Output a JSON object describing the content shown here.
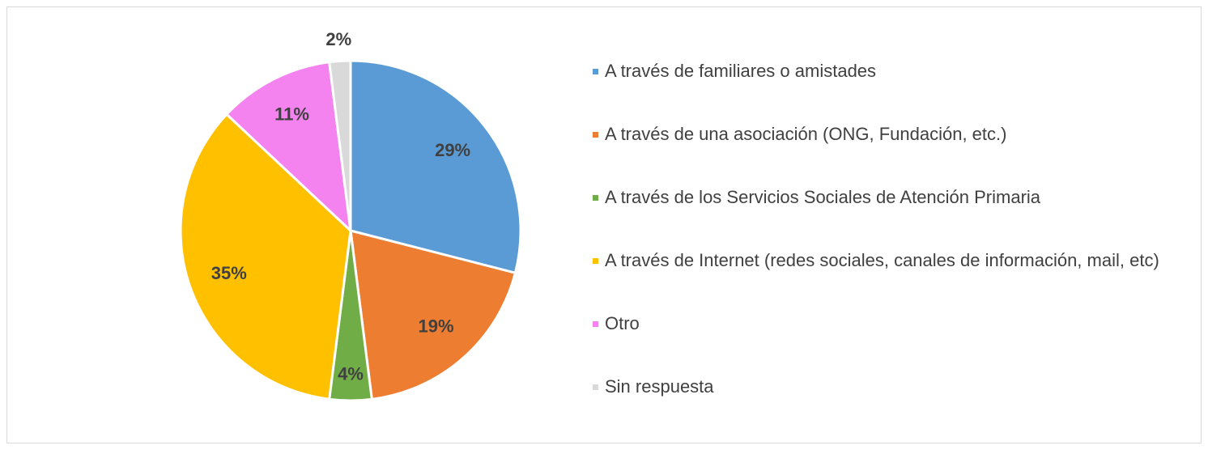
{
  "chart_data": {
    "type": "pie",
    "categories": [
      "A través de familiares o amistades",
      "A través de una asociación (ONG, Fundación, etc.)",
      "A través de los Servicios Sociales de Atención Primaria",
      "A través de Internet (redes sociales, canales de información, mail, etc)",
      "Otro",
      "Sin respuesta"
    ],
    "values": [
      29,
      19,
      4,
      35,
      11,
      2
    ],
    "value_labels": [
      "29%",
      "19%",
      "4%",
      "35%",
      "11%",
      "2%"
    ],
    "colors": [
      "#5b9bd5",
      "#ed7d31",
      "#70ad47",
      "#ffc000",
      "#f483f0",
      "#d9d9d9"
    ],
    "legend": "right"
  }
}
